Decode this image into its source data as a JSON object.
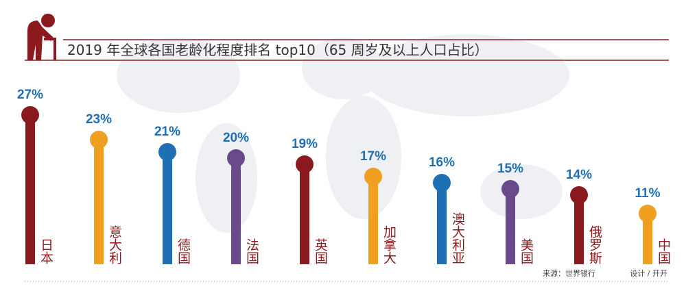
{
  "chart_data": {
    "type": "lollipop",
    "title": "2019 年全球各国老龄化程度排名 top10（65 周岁及以上人口占比）",
    "categories": [
      "日本",
      "意大利",
      "德国",
      "法国",
      "英国",
      "加拿大",
      "澳大利亚",
      "美国",
      "俄罗斯",
      "中国"
    ],
    "values": [
      27,
      23,
      21,
      20,
      19,
      17,
      16,
      15,
      14,
      11
    ],
    "value_labels": [
      "27%",
      "23%",
      "21%",
      "20%",
      "19%",
      "17%",
      "16%",
      "15%",
      "14%",
      "11%"
    ],
    "colors": [
      "#8b1a1f",
      "#f0a020",
      "#1f6fb5",
      "#6a4a8c",
      "#8b1a1f",
      "#f0a020",
      "#1f6fb5",
      "#6a4a8c",
      "#8b1a1f",
      "#f0a020"
    ],
    "source": "来源：世界银行",
    "credit": "设计 / 开开"
  }
}
